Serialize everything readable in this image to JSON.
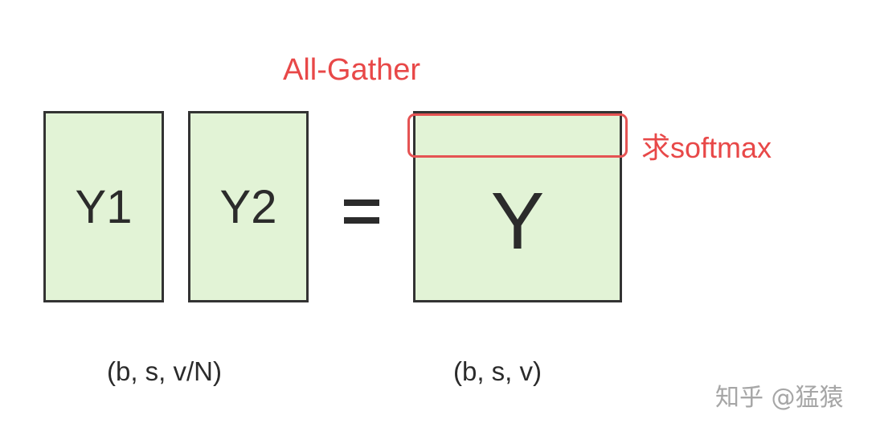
{
  "diagram": {
    "annotations": {
      "all_gather": "All-Gather",
      "softmax": "求softmax"
    },
    "boxes": {
      "y1": "Y1",
      "y2": "Y2",
      "y": "Y"
    },
    "operator": "=",
    "shapes": {
      "input": "(b, s, v/N)",
      "output": "(b, s, v)"
    }
  },
  "watermark": "知乎 @猛猿",
  "colors": {
    "box_fill": "#e2f3d6",
    "box_border": "#333333",
    "annotation_red": "#e84848",
    "text_dark": "#2b2b2b",
    "watermark_gray": "#a6a6a6"
  }
}
